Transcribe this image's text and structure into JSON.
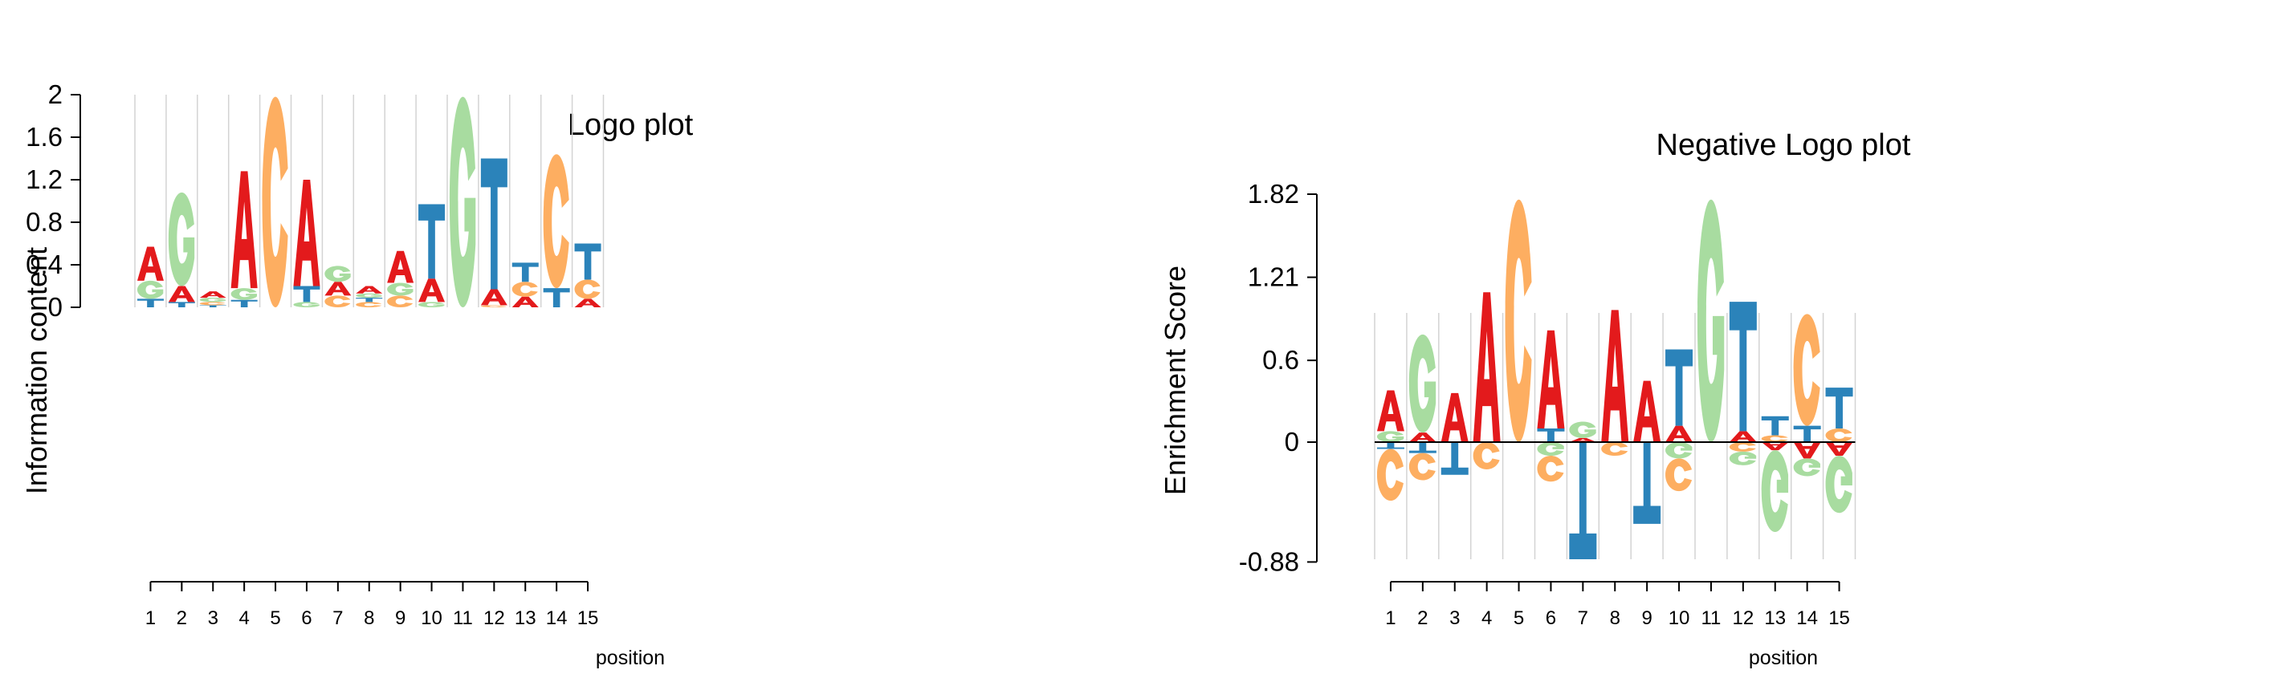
{
  "colors": {
    "A": "#e31a1c",
    "C": "#fdae61",
    "G": "#a8dca0",
    "T": "#2b83ba",
    "separator": "#d3d3d3",
    "axis": "#000000"
  },
  "chart_data": [
    {
      "type": "sequence-logo",
      "title": "Logo plot",
      "xlabel": "position",
      "ylabel": "Information content",
      "ylim": [
        0,
        2
      ],
      "yticks": [
        "0",
        "0.4",
        "0.8",
        "1.2",
        "1.6",
        "2"
      ],
      "positions": [
        "1",
        "2",
        "3",
        "4",
        "5",
        "6",
        "7",
        "8",
        "9",
        "10",
        "11",
        "12",
        "13",
        "14",
        "15"
      ],
      "columns": [
        [
          {
            "base": "T",
            "height": 0.08
          },
          {
            "base": "G",
            "height": 0.17
          },
          {
            "base": "A",
            "height": 0.32
          }
        ],
        [
          {
            "base": "T",
            "height": 0.05
          },
          {
            "base": "A",
            "height": 0.15
          },
          {
            "base": "G",
            "height": 0.88
          }
        ],
        [
          {
            "base": "T",
            "height": 0.02
          },
          {
            "base": "C",
            "height": 0.03
          },
          {
            "base": "G",
            "height": 0.04
          },
          {
            "base": "A",
            "height": 0.06
          }
        ],
        [
          {
            "base": "T",
            "height": 0.07
          },
          {
            "base": "G",
            "height": 0.11
          },
          {
            "base": "A",
            "height": 1.1
          }
        ],
        [
          {
            "base": "C",
            "height": 1.98
          }
        ],
        [
          {
            "base": "G",
            "height": 0.05
          },
          {
            "base": "T",
            "height": 0.15
          },
          {
            "base": "A",
            "height": 1.0
          }
        ],
        [
          {
            "base": "C",
            "height": 0.11
          },
          {
            "base": "A",
            "height": 0.13
          },
          {
            "base": "G",
            "height": 0.15
          }
        ],
        [
          {
            "base": "C",
            "height": 0.05
          },
          {
            "base": "T",
            "height": 0.04
          },
          {
            "base": "G",
            "height": 0.04
          },
          {
            "base": "A",
            "height": 0.07
          }
        ],
        [
          {
            "base": "C",
            "height": 0.11
          },
          {
            "base": "G",
            "height": 0.12
          },
          {
            "base": "A",
            "height": 0.3
          }
        ],
        [
          {
            "base": "G",
            "height": 0.05
          },
          {
            "base": "A",
            "height": 0.22
          },
          {
            "base": "T",
            "height": 0.7
          }
        ],
        [
          {
            "base": "G",
            "height": 1.98
          }
        ],
        [
          {
            "base": "C",
            "height": 0.02
          },
          {
            "base": "A",
            "height": 0.15
          },
          {
            "base": "T",
            "height": 1.23
          }
        ],
        [
          {
            "base": "A",
            "height": 0.1
          },
          {
            "base": "C",
            "height": 0.14
          },
          {
            "base": "T",
            "height": 0.18
          }
        ],
        [
          {
            "base": "T",
            "height": 0.18
          },
          {
            "base": "C",
            "height": 1.26
          }
        ],
        [
          {
            "base": "A",
            "height": 0.08
          },
          {
            "base": "C",
            "height": 0.18
          },
          {
            "base": "T",
            "height": 0.34
          }
        ]
      ]
    },
    {
      "type": "sequence-logo",
      "title": "Negative Logo plot",
      "xlabel": "position",
      "ylabel": "Enrichment Score",
      "ylim": [
        -0.88,
        1.82
      ],
      "yticks": [
        "-0.88",
        "0",
        "0.6",
        "1.21",
        "1.82"
      ],
      "positions": [
        "1",
        "2",
        "3",
        "4",
        "5",
        "6",
        "7",
        "8",
        "9",
        "10",
        "11",
        "12",
        "13",
        "14",
        "15"
      ],
      "columns": [
        {
          "pos": [
            {
              "base": "G",
              "height": 0.08
            },
            {
              "base": "A",
              "height": 0.3
            }
          ],
          "neg": [
            {
              "base": "T",
              "height": 0.05
            },
            {
              "base": "C",
              "height": 0.38
            }
          ]
        },
        {
          "pos": [
            {
              "base": "A",
              "height": 0.07
            },
            {
              "base": "G",
              "height": 0.72
            }
          ],
          "neg": [
            {
              "base": "T",
              "height": 0.08
            },
            {
              "base": "C",
              "height": 0.2
            }
          ]
        },
        {
          "pos": [
            {
              "base": "A",
              "height": 0.36
            }
          ],
          "neg": [
            {
              "base": "T",
              "height": 0.24
            }
          ]
        },
        {
          "pos": [
            {
              "base": "A",
              "height": 1.1
            }
          ],
          "neg": [
            {
              "base": "C",
              "height": 0.2
            }
          ]
        },
        {
          "pos": [
            {
              "base": "C",
              "height": 1.78
            }
          ],
          "neg": []
        },
        {
          "pos": [
            {
              "base": "T",
              "height": 0.1
            },
            {
              "base": "A",
              "height": 0.72
            }
          ],
          "neg": [
            {
              "base": "G",
              "height": 0.1
            },
            {
              "base": "C",
              "height": 0.19
            }
          ]
        },
        {
          "pos": [
            {
              "base": "A",
              "height": 0.03
            },
            {
              "base": "G",
              "height": 0.12
            }
          ],
          "neg": [
            {
              "base": "T",
              "height": 0.86
            }
          ]
        },
        {
          "pos": [
            {
              "base": "A",
              "height": 0.97
            }
          ],
          "neg": [
            {
              "base": "C",
              "height": 0.1
            }
          ]
        },
        {
          "pos": [
            {
              "base": "A",
              "height": 0.45
            }
          ],
          "neg": [
            {
              "base": "T",
              "height": 0.6
            }
          ]
        },
        {
          "pos": [
            {
              "base": "A",
              "height": 0.12
            },
            {
              "base": "T",
              "height": 0.56
            }
          ],
          "neg": [
            {
              "base": "G",
              "height": 0.12
            },
            {
              "base": "C",
              "height": 0.24
            }
          ]
        },
        {
          "pos": [
            {
              "base": "G",
              "height": 1.78
            }
          ],
          "neg": []
        },
        {
          "pos": [
            {
              "base": "A",
              "height": 0.08
            },
            {
              "base": "T",
              "height": 0.95
            }
          ],
          "neg": [
            {
              "base": "C",
              "height": 0.07
            },
            {
              "base": "G",
              "height": 0.1
            }
          ]
        },
        {
          "pos": [
            {
              "base": "C",
              "height": 0.05
            },
            {
              "base": "T",
              "height": 0.14
            }
          ],
          "neg": [
            {
              "base": "A",
              "height": 0.06
            },
            {
              "base": "G",
              "height": 0.6
            }
          ]
        },
        {
          "pos": [
            {
              "base": "T",
              "height": 0.12
            },
            {
              "base": "C",
              "height": 0.82
            }
          ],
          "neg": [
            {
              "base": "A",
              "height": 0.12
            },
            {
              "base": "G",
              "height": 0.13
            }
          ]
        },
        {
          "pos": [
            {
              "base": "C",
              "height": 0.1
            },
            {
              "base": "T",
              "height": 0.3
            }
          ],
          "neg": [
            {
              "base": "A",
              "height": 0.1
            },
            {
              "base": "G",
              "height": 0.42
            }
          ]
        }
      ]
    }
  ]
}
